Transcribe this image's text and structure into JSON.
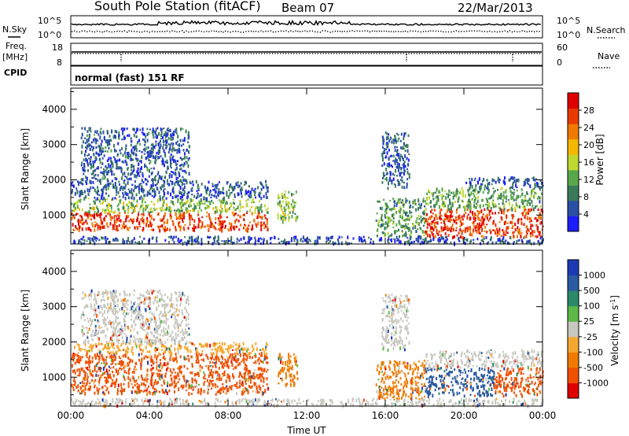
{
  "header": {
    "station": "South Pole Station (fitACF)",
    "beam": "Beam 07",
    "date": "22/Mar/2013"
  },
  "left_labels": {
    "nsky": "N.Sky",
    "freq": "Freq.",
    "freq_unit": "[MHz]",
    "cpid": "CPID"
  },
  "right_labels": {
    "nsearch": "N.Search",
    "nave": "Nave"
  },
  "cpid_text": "normal (fast) 151 RF",
  "noise_panel": {
    "ticks_left": [
      "10^5",
      "10^0"
    ],
    "ticks_right": [
      "10^5",
      "10^0"
    ]
  },
  "freq_panel": {
    "ticks_left": [
      "18",
      "8"
    ],
    "ticks_right": [
      "60",
      "0"
    ]
  },
  "colors": {
    "power": [
      "#1c1cff",
      "#2a4fa6",
      "#3a7a5a",
      "#58a84a",
      "#c0d830",
      "#f5b800",
      "#f07a00",
      "#ea3a00",
      "#e00000"
    ],
    "velocity": [
      "#e00000",
      "#f05000",
      "#f07a00",
      "#f5a830",
      "#c8c8c0",
      "#5cb848",
      "#2a8a6a",
      "#2a5aa0",
      "#1c3ab4"
    ]
  },
  "chart_data": [
    {
      "type": "heatmap",
      "panel": "power",
      "ylabel": "Slant Range [km]",
      "xlabel": "",
      "x_ticks": [
        "00:00",
        "04:00",
        "08:00",
        "12:00",
        "16:00",
        "20:00",
        "00:00"
      ],
      "y_ticks": [
        1000,
        2000,
        3000,
        4000
      ],
      "xlim": [
        0,
        24
      ],
      "ylim": [
        180,
        4600
      ],
      "colorbar": {
        "label": "Power [dB]",
        "ticks": [
          4,
          8,
          12,
          16,
          20,
          24,
          28
        ],
        "range": [
          0,
          32
        ]
      },
      "regions": [
        {
          "t0": 0.0,
          "t1": 10.0,
          "r0": 600,
          "r1": 1100,
          "v": 27
        },
        {
          "t0": 0.0,
          "t1": 10.0,
          "r0": 1100,
          "r1": 1500,
          "v": 14
        },
        {
          "t0": 0.0,
          "t1": 10.0,
          "r0": 1500,
          "r1": 2000,
          "v": 6
        },
        {
          "t0": 0.5,
          "t1": 6.0,
          "r0": 2000,
          "r1": 3500,
          "v": 6
        },
        {
          "t0": 10.5,
          "t1": 11.5,
          "r0": 800,
          "r1": 1700,
          "v": 14
        },
        {
          "t0": 15.5,
          "t1": 18.0,
          "r0": 400,
          "r1": 1500,
          "v": 11
        },
        {
          "t0": 15.8,
          "t1": 17.2,
          "r0": 1800,
          "r1": 3400,
          "v": 6
        },
        {
          "t0": 18.0,
          "t1": 24.0,
          "r0": 400,
          "r1": 1200,
          "v": 27
        },
        {
          "t0": 18.0,
          "t1": 24.0,
          "r0": 1200,
          "r1": 1800,
          "v": 12
        },
        {
          "t0": 20.0,
          "t1": 24.0,
          "r0": 1800,
          "r1": 2100,
          "v": 6
        },
        {
          "t0": 0.0,
          "t1": 24.0,
          "r0": 220,
          "r1": 420,
          "v": 5
        }
      ]
    },
    {
      "type": "heatmap",
      "panel": "velocity",
      "ylabel": "Slant Range [km]",
      "xlabel": "Time UT",
      "x_ticks": [
        "00:00",
        "04:00",
        "08:00",
        "12:00",
        "16:00",
        "20:00",
        "00:00"
      ],
      "y_ticks": [
        1000,
        2000,
        3000,
        4000
      ],
      "xlim": [
        0,
        24
      ],
      "ylim": [
        180,
        4600
      ],
      "colorbar": {
        "label": "Velocity [m s^-1]",
        "ticks": [
          "-1000",
          "-500",
          "-100",
          "-25",
          "25",
          "100",
          "500",
          "1000"
        ]
      },
      "regions": [
        {
          "t0": 0.0,
          "t1": 10.0,
          "r0": 550,
          "r1": 1700,
          "v": "-500"
        },
        {
          "t0": 0.0,
          "t1": 10.0,
          "r0": 1700,
          "r1": 2000,
          "v": "-25"
        },
        {
          "t0": 0.5,
          "t1": 6.0,
          "r0": 2000,
          "r1": 3500,
          "v": "0"
        },
        {
          "t0": 10.5,
          "t1": 11.5,
          "r0": 800,
          "r1": 1700,
          "v": "-100"
        },
        {
          "t0": 15.5,
          "t1": 18.0,
          "r0": 400,
          "r1": 1500,
          "v": "-100"
        },
        {
          "t0": 15.8,
          "t1": 17.2,
          "r0": 1800,
          "r1": 3400,
          "v": "0"
        },
        {
          "t0": 18.0,
          "t1": 21.5,
          "r0": 500,
          "r1": 1300,
          "v": "500"
        },
        {
          "t0": 21.5,
          "t1": 24.0,
          "r0": 500,
          "r1": 1300,
          "v": "-500"
        },
        {
          "t0": 18.0,
          "t1": 24.0,
          "r0": 1300,
          "r1": 1800,
          "v": "0"
        },
        {
          "t0": 0.0,
          "t1": 24.0,
          "r0": 220,
          "r1": 420,
          "v": "0"
        }
      ]
    }
  ]
}
